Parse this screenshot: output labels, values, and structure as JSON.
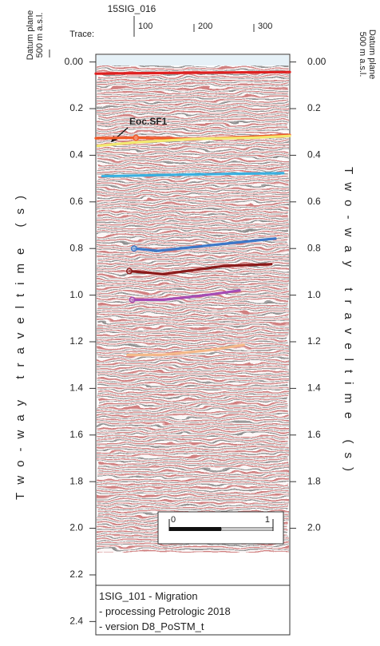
{
  "chart_data": {
    "type": "seismic",
    "title": "15SIG_016",
    "xlabel": "Trace:",
    "ylabel": "Two-way traveltime (s)",
    "datum_label": [
      "Datum plane",
      "500 m a.s.l."
    ],
    "annotation": "Eoc.SF1",
    "xlim": [
      36,
      360
    ],
    "xticks": [
      100,
      200,
      300
    ],
    "ylim": [
      -0.033,
      2.457
    ],
    "yticks": [
      {
        "value": 0,
        "label": "0.00"
      },
      0.2,
      0.4,
      0.6,
      0.8,
      {
        "value": 1,
        "label": "1.0"
      },
      1.2,
      1.4,
      1.6,
      1.8,
      {
        "value": 2,
        "label": "2.0"
      },
      2.2,
      2.4
    ],
    "scale_bar": [
      0,
      1
    ],
    "legend_lines": [
      "1SIG_101 - Migration",
      "- processing Petrologic 2018",
      "- version D8_PoSTM_t"
    ],
    "series": [
      {
        "color": "#e02020",
        "marker": false,
        "x": [
          36,
          150,
          250,
          360
        ],
        "values": [
          0.05,
          0.047,
          0.045,
          0.043
        ]
      },
      {
        "color": "#f05a28",
        "marker": true,
        "x": [
          36,
          103,
          200,
          300,
          360
        ],
        "values": [
          0.327,
          0.325,
          0.33,
          0.32,
          0.313
        ]
      },
      {
        "color": "#f2e870",
        "marker": false,
        "x": [
          39,
          100,
          200,
          300,
          360
        ],
        "values": [
          0.36,
          0.345,
          0.33,
          0.325,
          0.317
        ]
      },
      {
        "color": "#3ab0e0",
        "marker": false,
        "x": [
          47,
          150,
          250,
          349
        ],
        "values": [
          0.49,
          0.485,
          0.48,
          0.477
        ]
      },
      {
        "color": "#3c78c8",
        "marker": true,
        "x": [
          100,
          140,
          250,
          336
        ],
        "values": [
          0.8,
          0.81,
          0.78,
          0.757
        ]
      },
      {
        "color": "#8b1a1a",
        "marker": true,
        "x": [
          92,
          150,
          250,
          329
        ],
        "values": [
          0.897,
          0.91,
          0.875,
          0.867
        ]
      },
      {
        "color": "#a64bb4",
        "marker": true,
        "x": [
          97,
          150,
          220,
          276
        ],
        "values": [
          1.02,
          1.02,
          1.0,
          0.98
        ]
      },
      {
        "color": "#f5b98a",
        "marker": false,
        "x": [
          89,
          150,
          230,
          283
        ],
        "values": [
          1.257,
          1.255,
          1.235,
          1.213
        ]
      }
    ]
  }
}
